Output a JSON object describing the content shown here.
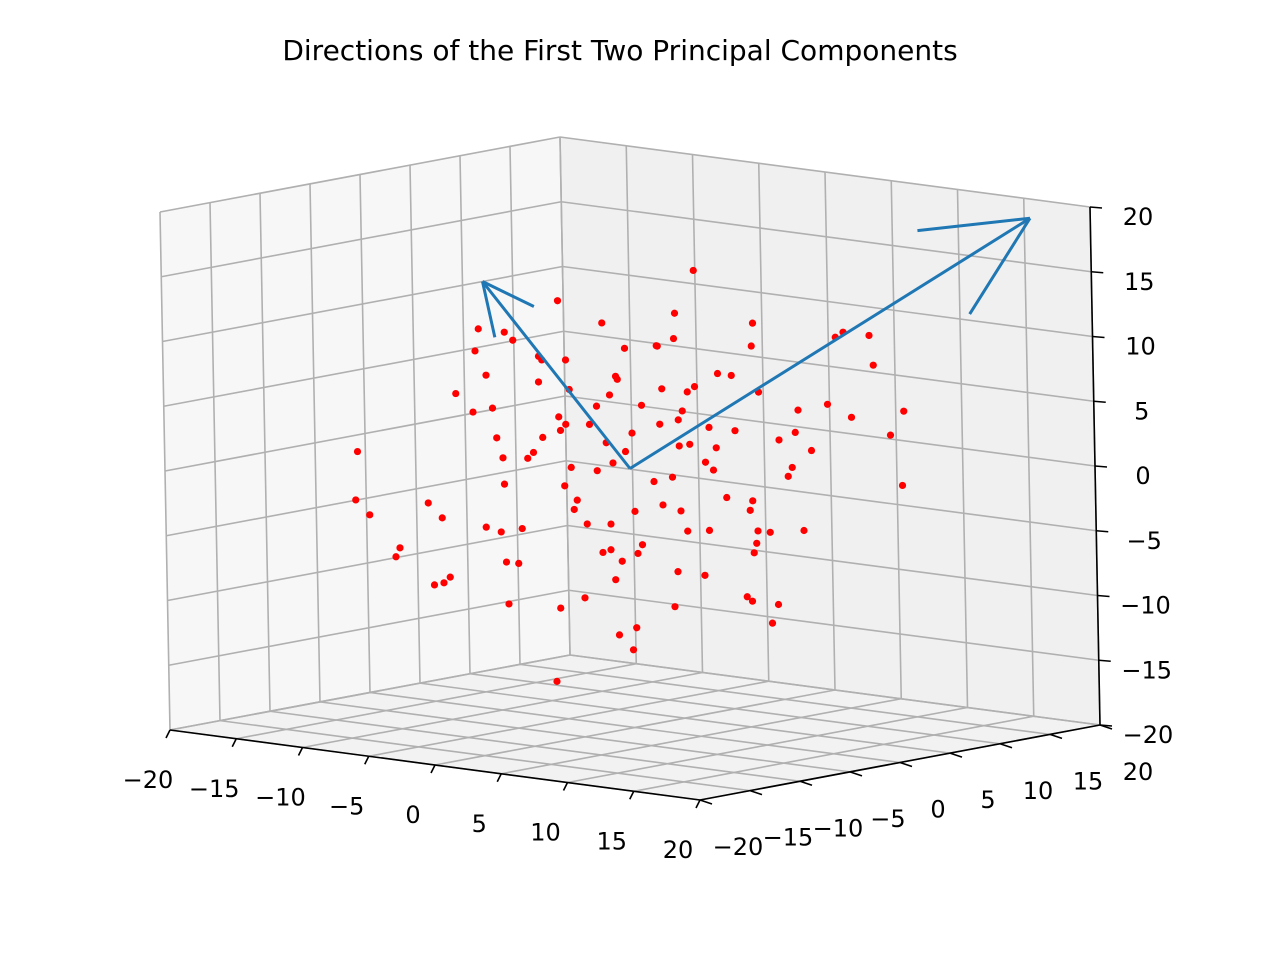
{
  "chart_data": {
    "type": "scatter3d",
    "title": "Directions of the First Two Principal Components",
    "xlabel": "",
    "ylabel": "",
    "zlabel": "",
    "xlim": [
      -20,
      20
    ],
    "ylim": [
      -20,
      20
    ],
    "zlim": [
      -20,
      20
    ],
    "x_ticks": [
      "−20",
      "−15",
      "−10",
      "−5",
      "0",
      "5",
      "10",
      "15",
      "20"
    ],
    "y_ticks": [
      "−20",
      "−15",
      "−10",
      "−5",
      "0",
      "5",
      "10",
      "15",
      "20"
    ],
    "z_ticks": [
      "−20",
      "−15",
      "−10",
      "−5",
      "0",
      "5",
      "10",
      "15",
      "20"
    ],
    "grid": true,
    "point_color": "#ff0000",
    "arrow_color": "#1f77b4",
    "arrows": [
      {
        "start": [
          0,
          0,
          0
        ],
        "end": [
          -20,
          12,
          10
        ]
      },
      {
        "start": [
          0,
          0,
          0
        ],
        "end": [
          20,
          14,
          20
        ]
      }
    ],
    "points": [
      [
        -5,
        -2,
        8
      ],
      [
        3,
        1,
        2
      ],
      [
        -8,
        4,
        -3
      ],
      [
        6,
        -3,
        5
      ],
      [
        1,
        7,
        -1
      ],
      [
        -2,
        -6,
        3
      ],
      [
        9,
        2,
        -4
      ],
      [
        -10,
        -1,
        6
      ],
      [
        4,
        5,
        7
      ],
      [
        -3,
        3,
        -8
      ],
      [
        7,
        -5,
        1
      ],
      [
        -6,
        6,
        4
      ],
      [
        2,
        -2,
        -6
      ],
      [
        -1,
        1,
        9
      ],
      [
        5,
        3,
        -2
      ],
      [
        -7,
        -4,
        2
      ],
      [
        8,
        6,
        3
      ],
      [
        0,
        -7,
        5
      ],
      [
        -4,
        2,
        -1
      ],
      [
        3,
        -6,
        -5
      ],
      [
        -9,
        5,
        1
      ],
      [
        6,
        1,
        8
      ],
      [
        -2,
        -3,
        -3
      ],
      [
        1,
        4,
        4
      ],
      [
        10,
        -1,
        -1
      ],
      [
        -5,
        7,
        -5
      ],
      [
        4,
        -4,
        6
      ],
      [
        -8,
        -2,
        -2
      ],
      [
        2,
        6,
        1
      ],
      [
        -3,
        -5,
        7
      ],
      [
        7,
        3,
        -6
      ],
      [
        -1,
        -1,
        2
      ],
      [
        5,
        -7,
        3
      ],
      [
        -6,
        2,
        5
      ],
      [
        0,
        5,
        -4
      ],
      [
        3,
        -1,
        10
      ],
      [
        -10,
        3,
        -1
      ],
      [
        8,
        -3,
        2
      ],
      [
        -4,
        -6,
        -7
      ],
      [
        1,
        2,
        6
      ],
      [
        -7,
        6,
        3
      ],
      [
        6,
        4,
        -3
      ],
      [
        -2,
        1,
        -9
      ],
      [
        4,
        -5,
        4
      ],
      [
        -5,
        -3,
        1
      ],
      [
        9,
        5,
        5
      ],
      [
        -1,
        -4,
        -2
      ],
      [
        2,
        3,
        -5
      ],
      [
        -8,
        -5,
        4
      ],
      [
        5,
        0,
        7
      ],
      [
        -3,
        7,
        2
      ],
      [
        0,
        -2,
        -4
      ],
      [
        7,
        -6,
        -1
      ],
      [
        -6,
        -1,
        8
      ],
      [
        3,
        4,
        3
      ],
      [
        -9,
        1,
        -6
      ],
      [
        1,
        -3,
        1
      ],
      [
        6,
        7,
        2
      ],
      [
        -4,
        4,
        6
      ],
      [
        2,
        -7,
        -3
      ],
      [
        -2,
        5,
        -2
      ],
      [
        8,
        0,
        4
      ],
      [
        -5,
        -7,
        5
      ],
      [
        4,
        2,
        -8
      ],
      [
        -7,
        3,
        7
      ],
      [
        0,
        6,
        1
      ],
      [
        5,
        -2,
        -7
      ],
      [
        -1,
        -5,
        4
      ],
      [
        10,
        3,
        1
      ],
      [
        -3,
        0,
        3
      ],
      [
        11,
        -2,
        -4
      ],
      [
        -11,
        2,
        -9
      ],
      [
        12,
        4,
        6
      ],
      [
        -12,
        -3,
        -5
      ],
      [
        9,
        -6,
        8
      ],
      [
        -9,
        6,
        -2
      ],
      [
        13,
        1,
        3
      ],
      [
        -13,
        -1,
        -10
      ],
      [
        3,
        9,
        5
      ],
      [
        -3,
        -9,
        -4
      ],
      [
        14,
        6,
        9
      ],
      [
        -14,
        4,
        -7
      ],
      [
        7,
        8,
        -5
      ],
      [
        -7,
        -8,
        6
      ],
      [
        15,
        -4,
        2
      ],
      [
        -15,
        1,
        -11
      ],
      [
        11,
        7,
        11
      ],
      [
        -10,
        -7,
        -3
      ],
      [
        2,
        10,
        -6
      ],
      [
        -2,
        -10,
        2
      ],
      [
        16,
        3,
        12
      ],
      [
        -16,
        -2,
        -8
      ],
      [
        12,
        -8,
        -2
      ],
      [
        -8,
        8,
        9
      ],
      [
        6,
        -9,
        9
      ],
      [
        -6,
        9,
        -8
      ],
      [
        17,
        5,
        6
      ],
      [
        -17,
        -5,
        -4
      ],
      [
        10,
        9,
        4
      ],
      [
        -11,
        -9,
        -7
      ],
      [
        18,
        -3,
        13
      ],
      [
        -18,
        4,
        -12
      ],
      [
        1,
        11,
        8
      ],
      [
        -1,
        -11,
        -9
      ],
      [
        13,
        10,
        -1
      ],
      [
        -13,
        -10,
        1
      ],
      [
        4,
        -10,
        -8
      ],
      [
        -4,
        10,
        10
      ],
      [
        19,
        1,
        5
      ],
      [
        -19,
        -1,
        -6
      ],
      [
        0,
        0,
        -14
      ],
      [
        2,
        -4,
        -12
      ],
      [
        -2,
        3,
        -13
      ],
      [
        5,
        -2,
        11
      ],
      [
        -6,
        1,
        12
      ],
      [
        8,
        4,
        -10
      ],
      [
        -9,
        -3,
        10
      ],
      [
        3,
        8,
        -11
      ],
      [
        -4,
        -7,
        11
      ],
      [
        7,
        -5,
        -9
      ],
      [
        -10,
        6,
        -13
      ],
      [
        11,
        -2,
        13
      ],
      [
        1,
        -9,
        -15
      ],
      [
        -1,
        8,
        14
      ],
      [
        6,
        6,
        -12
      ],
      [
        -7,
        -6,
        9
      ],
      [
        14,
        -7,
        -7
      ],
      [
        -14,
        7,
        7
      ],
      [
        9,
        -9,
        12
      ],
      [
        -9,
        9,
        -9
      ]
    ]
  }
}
